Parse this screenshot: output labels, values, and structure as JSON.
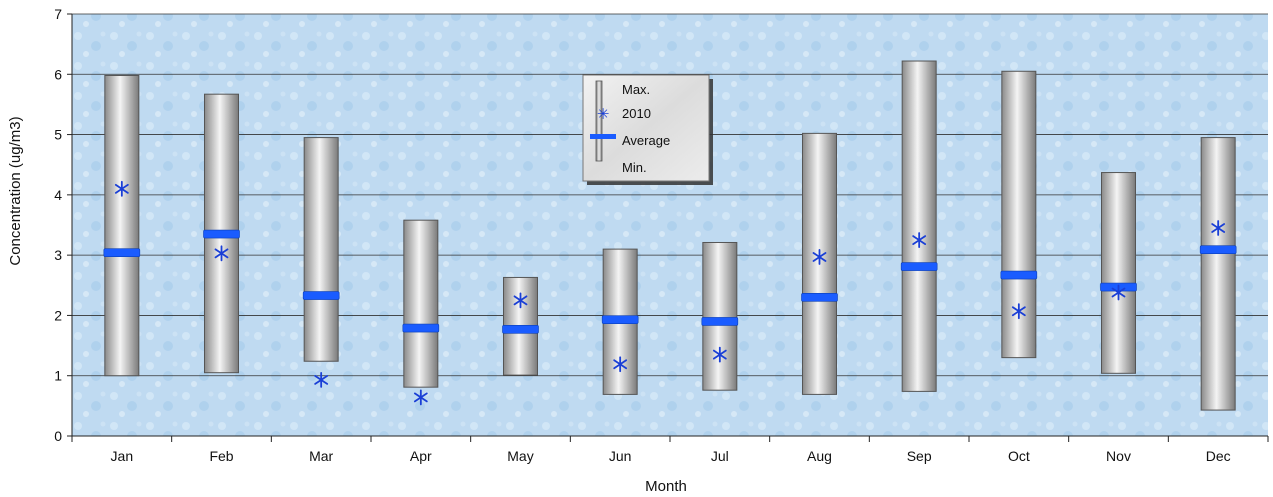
{
  "chart_data": {
    "type": "box",
    "title": "",
    "xlabel": "Month",
    "ylabel": "Concentration (ug/m3)",
    "ylim": [
      0,
      7
    ],
    "yticks": [
      0,
      1,
      2,
      3,
      4,
      5,
      6,
      7
    ],
    "grid": true,
    "legend_position": "top-center",
    "categories": [
      "Jan",
      "Feb",
      "Mar",
      "Apr",
      "May",
      "Jun",
      "Jul",
      "Aug",
      "Sep",
      "Oct",
      "Nov",
      "Dec"
    ],
    "series": [
      {
        "name": "Max.",
        "values": [
          5.98,
          5.67,
          4.95,
          3.58,
          2.63,
          3.1,
          3.21,
          5.02,
          6.22,
          6.05,
          4.37,
          4.95
        ]
      },
      {
        "name": "Min.",
        "values": [
          1.0,
          1.05,
          1.24,
          0.81,
          1.01,
          0.69,
          0.76,
          0.69,
          0.74,
          1.3,
          1.04,
          0.43
        ]
      },
      {
        "name": "Average",
        "values": [
          3.04,
          3.35,
          2.33,
          1.79,
          1.77,
          1.93,
          1.9,
          2.3,
          2.81,
          2.67,
          2.47,
          3.09
        ]
      },
      {
        "name": "2010",
        "values": [
          4.1,
          3.03,
          0.93,
          0.64,
          2.25,
          1.19,
          1.35,
          2.97,
          3.25,
          2.07,
          2.38,
          3.45
        ]
      }
    ],
    "legend": [
      "Max.",
      "2010",
      "Average",
      "Min."
    ],
    "colors": {
      "bar_fill": "#c4c4c4",
      "bar_stroke": "#555555",
      "average": "#1a5cff",
      "marker_2010": "#1a3fd6",
      "grid": "#333333"
    }
  }
}
